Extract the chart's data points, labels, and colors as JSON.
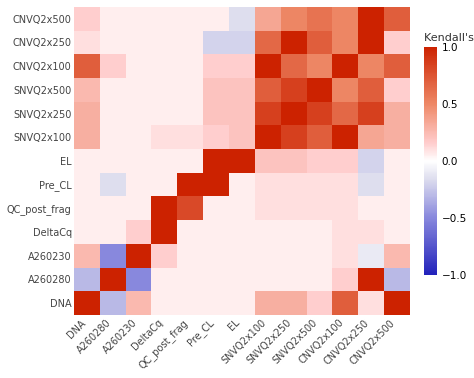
{
  "x_labels": [
    "DNA",
    "A260280",
    "A260230",
    "DeltaCq",
    "QC_post_frag",
    "Pre_CL",
    "EL",
    "SNVQ2x100",
    "SNVQ2x250",
    "SNVQ2x500",
    "CNVQ2x100",
    "CNVQ2x250",
    "CNVQ2x500"
  ],
  "y_labels": [
    "CNVQ2x500",
    "CNVQ2x250",
    "CNVQ2x100",
    "SNVQ2x500",
    "SNVQ2x250",
    "SNVQ2x100",
    "EL",
    "Pre_CL",
    "QC_post_frag",
    "DeltaCq",
    "A260230",
    "A260280",
    "DNA"
  ],
  "matrix": [
    [
      0.15,
      0.05,
      0.05,
      0.05,
      0.05,
      0.05,
      -0.15,
      0.35,
      0.5,
      0.6,
      0.5,
      1.0,
      0.7
    ],
    [
      0.1,
      0.05,
      0.05,
      0.05,
      0.05,
      -0.2,
      -0.2,
      0.65,
      1.0,
      0.7,
      0.5,
      1.0,
      0.15
    ],
    [
      0.7,
      0.15,
      0.05,
      0.05,
      0.05,
      0.15,
      0.15,
      1.0,
      0.65,
      0.5,
      1.0,
      0.5,
      0.7
    ],
    [
      0.25,
      0.05,
      0.05,
      0.05,
      0.05,
      0.2,
      0.2,
      0.7,
      0.85,
      1.0,
      0.5,
      0.7,
      0.15
    ],
    [
      0.3,
      0.05,
      0.05,
      0.05,
      0.05,
      0.2,
      0.2,
      0.85,
      1.0,
      0.85,
      0.65,
      0.85,
      0.3
    ],
    [
      0.3,
      0.05,
      0.05,
      0.1,
      0.1,
      0.15,
      0.2,
      1.0,
      0.85,
      0.7,
      1.0,
      0.35,
      0.3
    ],
    [
      0.05,
      0.05,
      0.05,
      0.05,
      0.05,
      1.0,
      1.0,
      0.2,
      0.2,
      0.15,
      0.15,
      -0.2,
      0.05
    ],
    [
      0.05,
      -0.15,
      0.05,
      0.05,
      1.0,
      1.0,
      0.05,
      0.1,
      0.1,
      0.1,
      0.1,
      -0.15,
      0.05
    ],
    [
      0.05,
      0.05,
      0.05,
      1.0,
      0.8,
      0.05,
      0.05,
      0.1,
      0.1,
      0.1,
      0.1,
      0.05,
      0.05
    ],
    [
      0.05,
      0.05,
      0.15,
      1.0,
      0.05,
      0.05,
      0.05,
      0.05,
      0.05,
      0.05,
      0.1,
      0.1,
      0.05
    ],
    [
      0.25,
      -0.5,
      1.0,
      0.15,
      0.05,
      0.05,
      0.05,
      0.05,
      0.05,
      0.05,
      0.1,
      -0.1,
      0.25
    ],
    [
      -0.3,
      1.0,
      -0.5,
      0.05,
      0.05,
      0.05,
      0.05,
      0.05,
      0.05,
      0.05,
      0.15,
      1.0,
      -0.3
    ],
    [
      1.0,
      -0.3,
      0.25,
      0.05,
      0.05,
      0.05,
      0.05,
      0.3,
      0.3,
      0.15,
      0.7,
      0.1,
      1.0
    ]
  ],
  "colorbar_label": "Kendall's Tau",
  "colorbar_title": "Kendall's Tau",
  "vmin": -1.0,
  "vmax": 1.0,
  "background_color": "#ffffff",
  "label_fontsize": 7.0,
  "cbar_fontsize": 8.0
}
